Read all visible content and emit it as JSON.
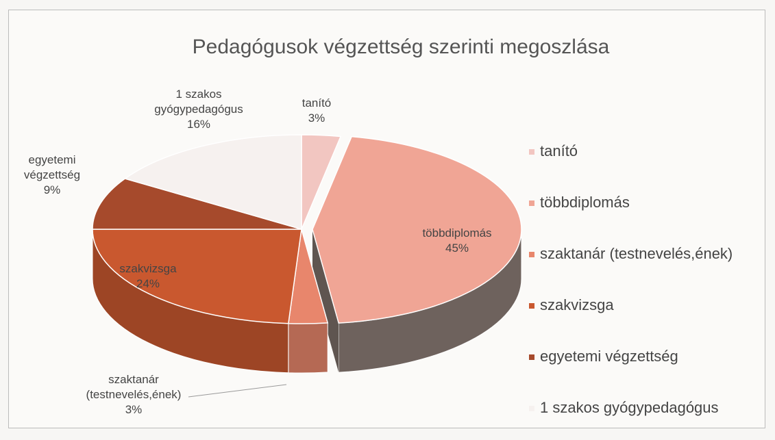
{
  "chart_data": {
    "type": "pie",
    "title": "Pedagógusok végzettség szerinti megoszlása",
    "categories": [
      "tanító",
      "többdiplomás",
      "szaktanár (testnevelés,ének)",
      "szakvizsga",
      "egyetemi végzettség",
      "1 szakos gyógypedagógus"
    ],
    "values": [
      3,
      45,
      3,
      24,
      9,
      16
    ],
    "value_labels": [
      "3%",
      "45%",
      "3%",
      "24%",
      "9%",
      "16%"
    ],
    "colors": [
      "#f2c6c1",
      "#f0a595",
      "#e8866c",
      "#c9582f",
      "#a64a2c",
      "#f6f1ef"
    ],
    "legend": "right"
  }
}
